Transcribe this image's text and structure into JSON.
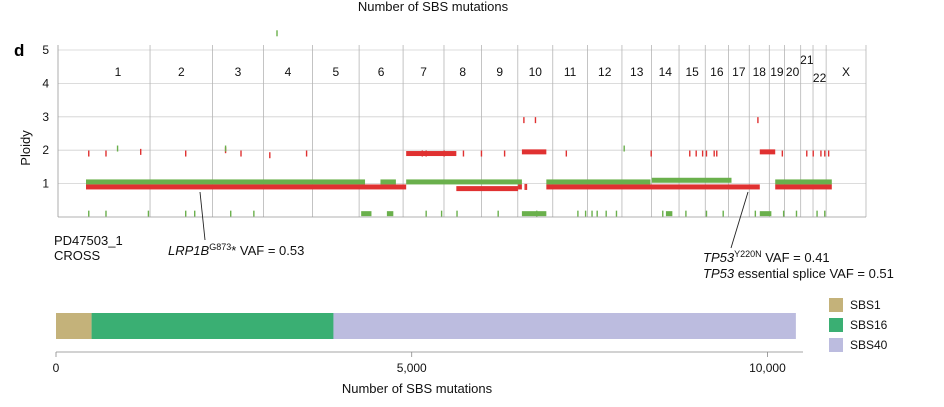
{
  "top_caption": "Number of SBS mutations",
  "panel_letter": "d",
  "colors": {
    "major": "#e03131",
    "minor": "#6ab04c",
    "grid": "#d0d0d0",
    "sbs1": "#c4b27a",
    "sbs16": "#3aaf73",
    "sbs40": "#bcbcdf"
  },
  "chart_data": [
    {
      "type": "line",
      "title": "",
      "ylabel": "Ploidy",
      "ylim": [
        0,
        5
      ],
      "yticks": [
        1,
        2,
        3,
        4,
        5
      ],
      "grid": "horizontal",
      "sample_id": "PD47503_1",
      "sample_line2": "CROSS",
      "chromosomes": [
        {
          "name": "1",
          "len": 249
        },
        {
          "name": "2",
          "len": 243
        },
        {
          "name": "3",
          "len": 198
        },
        {
          "name": "4",
          "len": 191
        },
        {
          "name": "5",
          "len": 181
        },
        {
          "name": "6",
          "len": 171
        },
        {
          "name": "7",
          "len": 159
        },
        {
          "name": "8",
          "len": 146
        },
        {
          "name": "9",
          "len": 141
        },
        {
          "name": "10",
          "len": 136
        },
        {
          "name": "11",
          "len": 135
        },
        {
          "name": "12",
          "len": 134
        },
        {
          "name": "13",
          "len": 115
        },
        {
          "name": "14",
          "len": 107
        },
        {
          "name": "15",
          "len": 102
        },
        {
          "name": "16",
          "len": 90
        },
        {
          "name": "17",
          "len": 81
        },
        {
          "name": "18",
          "len": 78
        },
        {
          "name": "19",
          "len": 59
        },
        {
          "name": "20",
          "len": 63
        },
        {
          "name": "21",
          "len": 48
        },
        {
          "name": "22",
          "len": 51
        },
        {
          "name": "X",
          "len": 155
        }
      ],
      "major_segments": [
        [
          0,
          1245,
          0.9
        ],
        [
          1245,
          1440,
          1.9
        ],
        [
          1440,
          1680,
          0.85
        ],
        [
          1680,
          1695,
          0.9
        ],
        [
          1695,
          1790,
          1.95
        ],
        [
          1790,
          2620,
          0.9
        ],
        [
          2620,
          2680,
          1.95
        ],
        [
          2680,
          2900,
          0.9
        ]
      ],
      "minor_segments": [
        [
          0,
          1085,
          1.05
        ],
        [
          1145,
          1205,
          1.05
        ],
        [
          1245,
          1695,
          1.05
        ],
        [
          1790,
          2195,
          1.05
        ],
        [
          2200,
          2510,
          1.1
        ],
        [
          2680,
          2900,
          1.05
        ]
      ],
      "minor_zero_segments": [
        [
          1070,
          1110,
          0.1
        ],
        [
          1170,
          1195,
          0.1
        ],
        [
          1695,
          1790,
          0.1
        ],
        [
          2255,
          2280,
          0.1
        ],
        [
          2620,
          2665,
          0.1
        ]
      ],
      "major_ticks": [
        [
          8,
          1.9
        ],
        [
          75,
          1.9
        ],
        [
          210,
          1.95
        ],
        [
          385,
          1.9
        ],
        [
          540,
          2.0
        ],
        [
          600,
          1.9
        ],
        [
          712,
          1.85
        ],
        [
          855,
          1.9
        ],
        [
          1700,
          2.9
        ],
        [
          1745,
          2.9
        ],
        [
          1305,
          1.9
        ],
        [
          1320,
          1.9
        ],
        [
          1390,
          1.9
        ],
        [
          1465,
          1.9
        ],
        [
          1535,
          1.9
        ],
        [
          1625,
          1.9
        ],
        [
          1705,
          0.9
        ],
        [
          1710,
          0.9
        ],
        [
          1865,
          1.9
        ],
        [
          2195,
          1.9
        ],
        [
          2345,
          1.9
        ],
        [
          2370,
          1.9
        ],
        [
          2395,
          1.9
        ],
        [
          2410,
          1.9
        ],
        [
          2440,
          1.9
        ],
        [
          2450,
          1.9
        ],
        [
          2610,
          2.9
        ],
        [
          2705,
          1.9
        ],
        [
          2800,
          1.9
        ],
        [
          2825,
          1.9
        ],
        [
          2855,
          1.9
        ],
        [
          2870,
          1.9
        ],
        [
          2885,
          1.9
        ]
      ],
      "minor_ticks": [
        [
          8,
          0.1
        ],
        [
          75,
          0.1
        ],
        [
          120,
          2.05
        ],
        [
          240,
          0.1
        ],
        [
          385,
          0.1
        ],
        [
          420,
          0.1
        ],
        [
          540,
          2.05
        ],
        [
          560,
          0.1
        ],
        [
          650,
          0.1
        ],
        [
          740,
          5.5
        ],
        [
          1320,
          0.1
        ],
        [
          1380,
          0.1
        ],
        [
          1440,
          0.1
        ],
        [
          1600,
          0.1
        ],
        [
          1750,
          0.1
        ],
        [
          1910,
          0.1
        ],
        [
          1940,
          0.1
        ],
        [
          1965,
          0.1
        ],
        [
          1985,
          0.1
        ],
        [
          2020,
          0.1
        ],
        [
          2060,
          0.1
        ],
        [
          2090,
          2.05
        ],
        [
          2240,
          0.1
        ],
        [
          2330,
          0.1
        ],
        [
          2410,
          0.1
        ],
        [
          2475,
          0.1
        ],
        [
          2600,
          0.1
        ],
        [
          2710,
          0.1
        ],
        [
          2760,
          0.1
        ],
        [
          2840,
          0.1
        ],
        [
          2870,
          0.1
        ]
      ],
      "annotations": {
        "lrp1b_gene": "LRP1B",
        "lrp1b_sup": "G873",
        "lrp1b_rest": "* VAF = 0.53",
        "tp53_gene": "TP53",
        "tp53_sup": "Y220N",
        "tp53_rest": " VAF = 0.41",
        "tp53_splice_gene": "TP53",
        "tp53_splice_rest": " essential splice VAF = 0.51"
      }
    },
    {
      "type": "bar",
      "orientation": "horizontal",
      "stacked": true,
      "title": "",
      "xlabel": "Number of SBS mutations",
      "ylabel": "",
      "xlim": [
        0,
        10500
      ],
      "xticks": [
        0,
        5000,
        10000
      ],
      "xtick_labels": [
        "0",
        "5,000",
        "10,000"
      ],
      "legend_position": "right",
      "series": [
        {
          "name": "SBS1",
          "value": 500
        },
        {
          "name": "SBS16",
          "value": 3900
        },
        {
          "name": "SBS40",
          "value": 10400
        }
      ]
    }
  ]
}
